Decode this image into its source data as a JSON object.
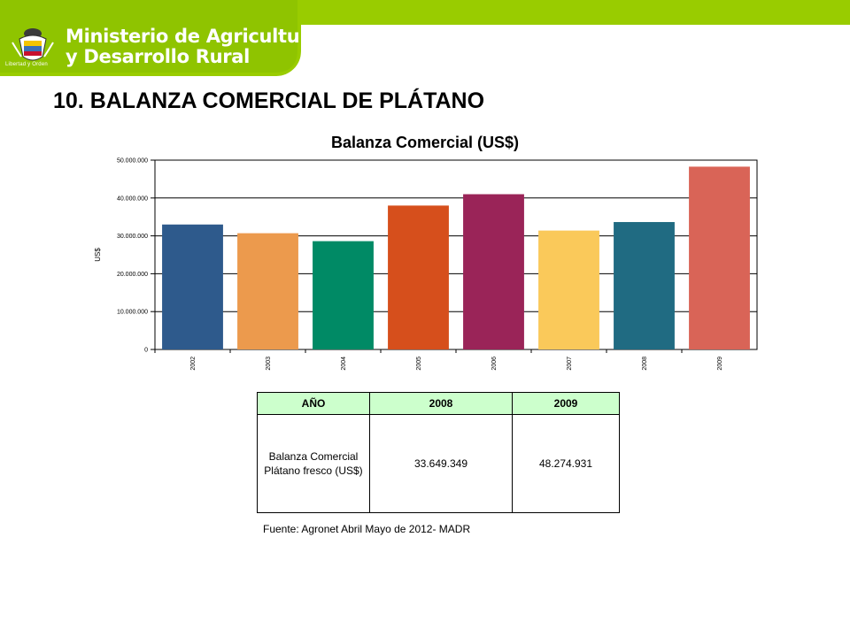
{
  "colors": {
    "brand_green": "#99cc00",
    "header_header_bg": "#ccffcc"
  },
  "header": {
    "ministry_line1": "Ministerio de Agricultura",
    "ministry_line2": "y Desarrollo Rural",
    "logo_caption": "Libertad y Orden",
    "logo_icon": "coat-of-arms-icon"
  },
  "page_title": "10. BALANZA COMERCIAL DE PLÁTANO",
  "chart_data": {
    "type": "bar",
    "title": "Balanza Comercial (US$)",
    "ylabel": "US$",
    "xlabel": "",
    "ylim": [
      0,
      50000000
    ],
    "yticks": [
      {
        "value": 0,
        "label": "0"
      },
      {
        "value": 10000000,
        "label": "10.000.000"
      },
      {
        "value": 20000000,
        "label": "20.000.000"
      },
      {
        "value": 30000000,
        "label": "30.000.000"
      },
      {
        "value": 40000000,
        "label": "40.000.000"
      },
      {
        "value": 50000000,
        "label": "50.000.000"
      }
    ],
    "grid": true,
    "legend": "none",
    "categories": [
      "2002",
      "2003",
      "2004",
      "2005",
      "2006",
      "2007",
      "2008",
      "2009"
    ],
    "values": [
      33000000,
      30700000,
      28600000,
      38000000,
      41000000,
      31400000,
      33649349,
      48274931
    ],
    "bar_colors": [
      "#2e5a8c",
      "#ec9a4d",
      "#008a65",
      "#d64f1c",
      "#9a2458",
      "#fac95a",
      "#206b82",
      "#d96457"
    ]
  },
  "table": {
    "headers": [
      "AÑO",
      "2008",
      "2009"
    ],
    "rows": [
      {
        "label": "Balanza Comercial Plátano fresco (US$)",
        "v2008": "33.649.349",
        "v2009": "48.274.931"
      }
    ]
  },
  "source_note": "Fuente: Agronet Abril Mayo de  2012- MADR"
}
